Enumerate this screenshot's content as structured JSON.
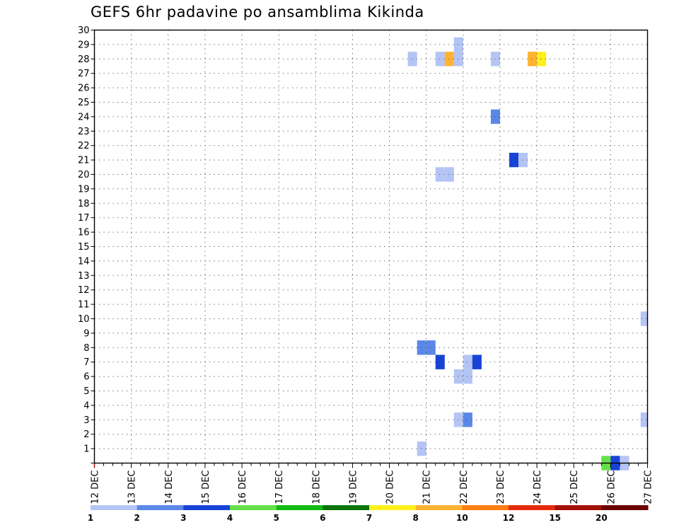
{
  "chart_data": {
    "type": "heatmap",
    "title": "GEFS 6hr padavine po ansamblima Kikinda",
    "xlabel": "",
    "ylabel": "",
    "x_ticks": [
      "12 DEC",
      "13 DEC",
      "14 DEC",
      "15 DEC",
      "16 DEC",
      "17 DEC",
      "18 DEC",
      "19 DEC",
      "20 DEC",
      "21 DEC",
      "22 DEC",
      "23 DEC",
      "24 DEC",
      "25 DEC",
      "26 DEC",
      "27 DEC"
    ],
    "y_ticks": [
      1,
      2,
      3,
      4,
      5,
      6,
      7,
      8,
      9,
      10,
      11,
      12,
      13,
      14,
      15,
      16,
      17,
      18,
      19,
      20,
      21,
      22,
      23,
      24,
      25,
      26,
      27,
      28,
      29,
      30
    ],
    "xlim": [
      0,
      60
    ],
    "ylim": [
      0,
      30
    ],
    "grid": true,
    "time_step": "6hr",
    "colorbar": {
      "labels": [
        "1",
        "2",
        "3",
        "4",
        "5",
        "6",
        "7",
        "8",
        "10",
        "12",
        "15",
        "20"
      ],
      "colors": [
        "#b4c5f5",
        "#5a87e8",
        "#1743d6",
        "#66e04a",
        "#11bb11",
        "#0b750b",
        "#fff01c",
        "#ffb330",
        "#ff7d12",
        "#e82a0c",
        "#a31006",
        "#6b0000"
      ]
    },
    "cells": [
      {
        "member": 28,
        "x": 34.5,
        "level": 0
      },
      {
        "member": 28,
        "x": 37.5,
        "level": 0
      },
      {
        "member": 28,
        "x": 38.5,
        "level": 7
      },
      {
        "member": 28,
        "x": 39.5,
        "level": 0
      },
      {
        "member": 29,
        "x": 39.5,
        "level": 0
      },
      {
        "member": 28,
        "x": 43.5,
        "level": 0
      },
      {
        "member": 28,
        "x": 47.5,
        "level": 7
      },
      {
        "member": 28,
        "x": 48.5,
        "level": 6
      },
      {
        "member": 24,
        "x": 43.5,
        "level": 1
      },
      {
        "member": 21,
        "x": 45.5,
        "level": 2
      },
      {
        "member": 21,
        "x": 46.5,
        "level": 0
      },
      {
        "member": 20,
        "x": 37.5,
        "level": 0
      },
      {
        "member": 20,
        "x": 38.5,
        "level": 0
      },
      {
        "member": 10,
        "x": 59.75,
        "level": 0
      },
      {
        "member": 8,
        "x": 35.5,
        "level": 1
      },
      {
        "member": 8,
        "x": 36.5,
        "level": 1
      },
      {
        "member": 7,
        "x": 37.5,
        "level": 2
      },
      {
        "member": 7,
        "x": 40.5,
        "level": 0
      },
      {
        "member": 7,
        "x": 41.5,
        "level": 2
      },
      {
        "member": 6,
        "x": 39.5,
        "level": 0
      },
      {
        "member": 6,
        "x": 40.5,
        "level": 0
      },
      {
        "member": 3,
        "x": 39.5,
        "level": 0
      },
      {
        "member": 3,
        "x": 40.5,
        "level": 1
      },
      {
        "member": 3,
        "x": 59.75,
        "level": 0
      },
      {
        "member": 1,
        "x": 35.5,
        "level": 0
      },
      {
        "member": 0,
        "x": 55.5,
        "level": 3
      },
      {
        "member": 0,
        "x": 56.5,
        "level": 2
      },
      {
        "member": 0,
        "x": 57.5,
        "level": 0
      }
    ]
  }
}
